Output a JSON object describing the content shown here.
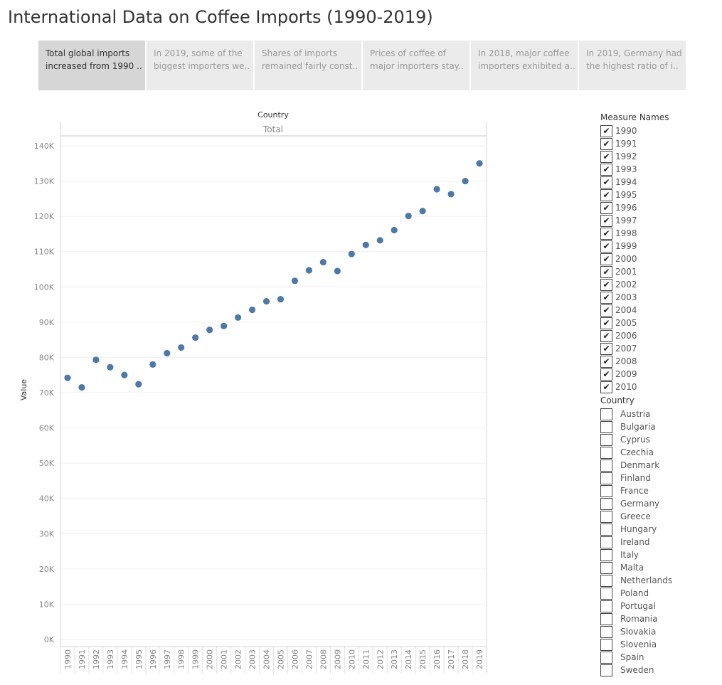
{
  "title": "International Data on Coffee Imports (1990-2019)",
  "story_points": [
    {
      "line1": "Total global imports",
      "line2": "increased from 1990 ..",
      "active": true
    },
    {
      "line1": "In 2019, some of the",
      "line2": "biggest importers we..",
      "active": false
    },
    {
      "line1": "Shares of imports",
      "line2": "remained fairly const..",
      "active": false
    },
    {
      "line1": " Prices of coffee of",
      "line2": "major importers stay..",
      "active": false
    },
    {
      "line1": "In 2018, major coffee",
      "line2": "importers exhibited a..",
      "active": false
    },
    {
      "line1": "In 2019, Germany  had",
      "line2": "the highest ratio of i..",
      "active": false
    }
  ],
  "filters": {
    "measure_names": {
      "title": "Measure Names",
      "items": [
        {
          "label": "1990",
          "checked": true
        },
        {
          "label": "1991",
          "checked": true
        },
        {
          "label": "1992",
          "checked": true
        },
        {
          "label": "1993",
          "checked": true
        },
        {
          "label": "1994",
          "checked": true
        },
        {
          "label": "1995",
          "checked": true
        },
        {
          "label": "1996",
          "checked": true
        },
        {
          "label": "1997",
          "checked": true
        },
        {
          "label": "1998",
          "checked": true
        },
        {
          "label": "1999",
          "checked": true
        },
        {
          "label": "2000",
          "checked": true
        },
        {
          "label": "2001",
          "checked": true
        },
        {
          "label": "2002",
          "checked": true
        },
        {
          "label": "2003",
          "checked": true
        },
        {
          "label": "2004",
          "checked": true
        },
        {
          "label": "2005",
          "checked": true
        },
        {
          "label": "2006",
          "checked": true
        },
        {
          "label": "2007",
          "checked": true
        },
        {
          "label": "2008",
          "checked": true
        },
        {
          "label": "2009",
          "checked": true
        },
        {
          "label": "2010",
          "checked": true
        }
      ]
    },
    "country": {
      "title": "Country",
      "items": [
        {
          "label": "Austria",
          "checked": false
        },
        {
          "label": "Bulgaria",
          "checked": false
        },
        {
          "label": "Cyprus",
          "checked": false
        },
        {
          "label": "Czechia",
          "checked": false
        },
        {
          "label": "Denmark",
          "checked": false
        },
        {
          "label": "Finland",
          "checked": false
        },
        {
          "label": "France",
          "checked": false
        },
        {
          "label": "Germany",
          "checked": false
        },
        {
          "label": "Greece",
          "checked": false
        },
        {
          "label": "Hungary",
          "checked": false
        },
        {
          "label": "Ireland",
          "checked": false
        },
        {
          "label": "Italy",
          "checked": false
        },
        {
          "label": "Malta",
          "checked": false
        },
        {
          "label": "Netherlands",
          "checked": false
        },
        {
          "label": "Poland",
          "checked": false
        },
        {
          "label": "Portugal",
          "checked": false
        },
        {
          "label": "Romania",
          "checked": false
        },
        {
          "label": "Slovakia",
          "checked": false
        },
        {
          "label": "Slovenia",
          "checked": false
        },
        {
          "label": "Spain",
          "checked": false
        },
        {
          "label": "Sweden",
          "checked": false
        }
      ]
    }
  },
  "chart_data": {
    "type": "scatter",
    "column_header": "Country",
    "pane_label": "Total",
    "ylabel": "Value",
    "xlabel": "",
    "ylim": [
      0,
      140000
    ],
    "ytick_values": [
      0,
      10000,
      20000,
      30000,
      40000,
      50000,
      60000,
      70000,
      80000,
      90000,
      100000,
      110000,
      120000,
      130000,
      140000
    ],
    "ytick_labels": [
      "0K",
      "10K",
      "20K",
      "30K",
      "40K",
      "50K",
      "60K",
      "70K",
      "80K",
      "90K",
      "100K",
      "110K",
      "120K",
      "130K",
      "140K"
    ],
    "categories": [
      "1990",
      "1991",
      "1992",
      "1993",
      "1994",
      "1995",
      "1996",
      "1997",
      "1998",
      "1999",
      "2000",
      "2001",
      "2002",
      "2003",
      "2004",
      "2005",
      "2006",
      "2007",
      "2008",
      "2009",
      "2010",
      "2011",
      "2012",
      "2013",
      "2014",
      "2015",
      "2016",
      "2017",
      "2018",
      "2019"
    ],
    "values": [
      74200,
      71500,
      79300,
      77200,
      75000,
      72400,
      78000,
      81200,
      82800,
      85600,
      87800,
      88900,
      91300,
      93500,
      95900,
      96500,
      101700,
      104700,
      107000,
      104500,
      109300,
      111900,
      113200,
      116100,
      120100,
      121500,
      127700,
      126300,
      130000,
      135000
    ],
    "color": "#4e79a7",
    "grid": true
  }
}
